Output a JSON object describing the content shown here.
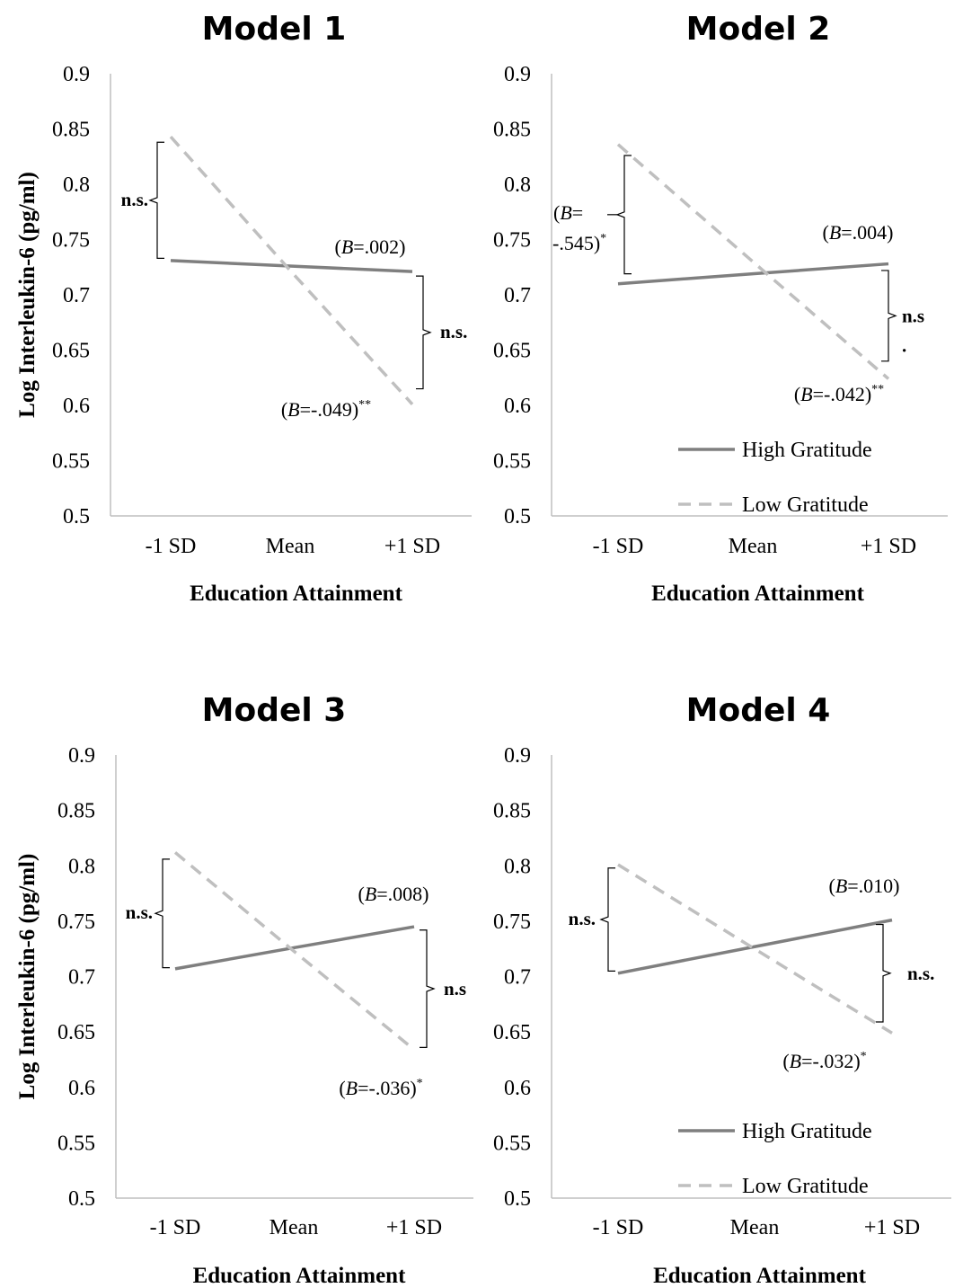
{
  "chart_data": [
    {
      "type": "line",
      "title": "Model 1",
      "xlabel": "Education Attainment",
      "ylabel": "Log Interleukin-6 (pg/ml)",
      "categories": [
        "-1 SD",
        "Mean",
        "+1 SD"
      ],
      "ylim": [
        0.5,
        0.9
      ],
      "yticks": [
        "0.5",
        "0.55",
        "0.6",
        "0.65",
        "0.7",
        "0.75",
        "0.8",
        "0.85",
        "0.9"
      ],
      "grid": false,
      "legend": false,
      "series": [
        {
          "name": "High Gratitude",
          "values": [
            0.731,
            0.726,
            0.721
          ],
          "color": "#7f7f7f",
          "style": "solid",
          "slope_label": "(B=.002)",
          "slope_B": "=.002",
          "slope_stars": ""
        },
        {
          "name": "Low Gratitude",
          "values": [
            0.843,
            0.722,
            0.601
          ],
          "color": "#bfbfbf",
          "style": "dashed",
          "slope_label": "(B=-.049)**",
          "slope_B": "=-.049)",
          "slope_stars": "**"
        }
      ],
      "annotations": {
        "left_bracket": "n.s.",
        "right_bracket": "n.s."
      }
    },
    {
      "type": "line",
      "title": "Model 2",
      "xlabel": "Education Attainment",
      "ylabel": "",
      "categories": [
        "-1 SD",
        "Mean",
        "+1 SD"
      ],
      "ylim": [
        0.5,
        0.9
      ],
      "yticks": [
        "0.5",
        "0.55",
        "0.6",
        "0.65",
        "0.7",
        "0.75",
        "0.8",
        "0.85",
        "0.9"
      ],
      "grid": false,
      "legend": "bottom-right",
      "series": [
        {
          "name": "High Gratitude",
          "values": [
            0.71,
            0.719,
            0.728
          ],
          "color": "#7f7f7f",
          "style": "solid",
          "slope_label": "(B=.004)",
          "slope_B": "=.004)",
          "slope_stars": ""
        },
        {
          "name": "Low Gratitude",
          "values": [
            0.836,
            0.73,
            0.624
          ],
          "color": "#bfbfbf",
          "style": "dashed",
          "slope_label": "(B=-.042)**",
          "slope_B": "=-.042)",
          "slope_stars": "**"
        }
      ],
      "annotations": {
        "left_bracket_line1": "(B=",
        "left_bracket_line2": "-.545)",
        "left_bracket_stars": "*",
        "right_bracket_line1": "n.s",
        "right_bracket_line2": "."
      }
    },
    {
      "type": "line",
      "title": "Model 3",
      "xlabel": "Education Attainment",
      "ylabel": "Log Interleukin-6 (pg/ml)",
      "categories": [
        "-1 SD",
        "Mean",
        "+1 SD"
      ],
      "ylim": [
        0.5,
        0.9
      ],
      "yticks": [
        "0.5",
        "0.55",
        "0.6",
        "0.65",
        "0.7",
        "0.75",
        "0.8",
        "0.85",
        "0.9"
      ],
      "grid": false,
      "legend": false,
      "series": [
        {
          "name": "High Gratitude",
          "values": [
            0.707,
            0.726,
            0.745
          ],
          "color": "#7f7f7f",
          "style": "solid",
          "slope_label": "(B=.008)",
          "slope_B": "=.008)",
          "slope_stars": ""
        },
        {
          "name": "Low Gratitude",
          "values": [
            0.812,
            0.723,
            0.634
          ],
          "color": "#bfbfbf",
          "style": "dashed",
          "slope_label": "(B=-.036)*",
          "slope_B": "=-.036)",
          "slope_stars": "*"
        }
      ],
      "annotations": {
        "left_bracket": "n.s.",
        "right_bracket": "n.s"
      }
    },
    {
      "type": "line",
      "title": "Model 4",
      "xlabel": "Education Attainment",
      "ylabel": "",
      "categories": [
        "-1 SD",
        "Mean",
        "+1 SD"
      ],
      "ylim": [
        0.5,
        0.9
      ],
      "yticks": [
        "0.5",
        "0.55",
        "0.6",
        "0.65",
        "0.7",
        "0.75",
        "0.8",
        "0.85",
        "0.9"
      ],
      "grid": false,
      "legend": "bottom-right",
      "series": [
        {
          "name": "High Gratitude",
          "values": [
            0.703,
            0.727,
            0.751
          ],
          "color": "#7f7f7f",
          "style": "solid",
          "slope_label": "(B=.010)",
          "slope_B": "=.010)",
          "slope_stars": ""
        },
        {
          "name": "Low Gratitude",
          "values": [
            0.801,
            0.725,
            0.649
          ],
          "color": "#bfbfbf",
          "style": "dashed",
          "slope_label": "(B=-.032)*",
          "slope_B": "=-.032)",
          "slope_stars": "*"
        }
      ],
      "annotations": {
        "left_bracket": "n.s.",
        "right_bracket": "n.s."
      }
    }
  ]
}
